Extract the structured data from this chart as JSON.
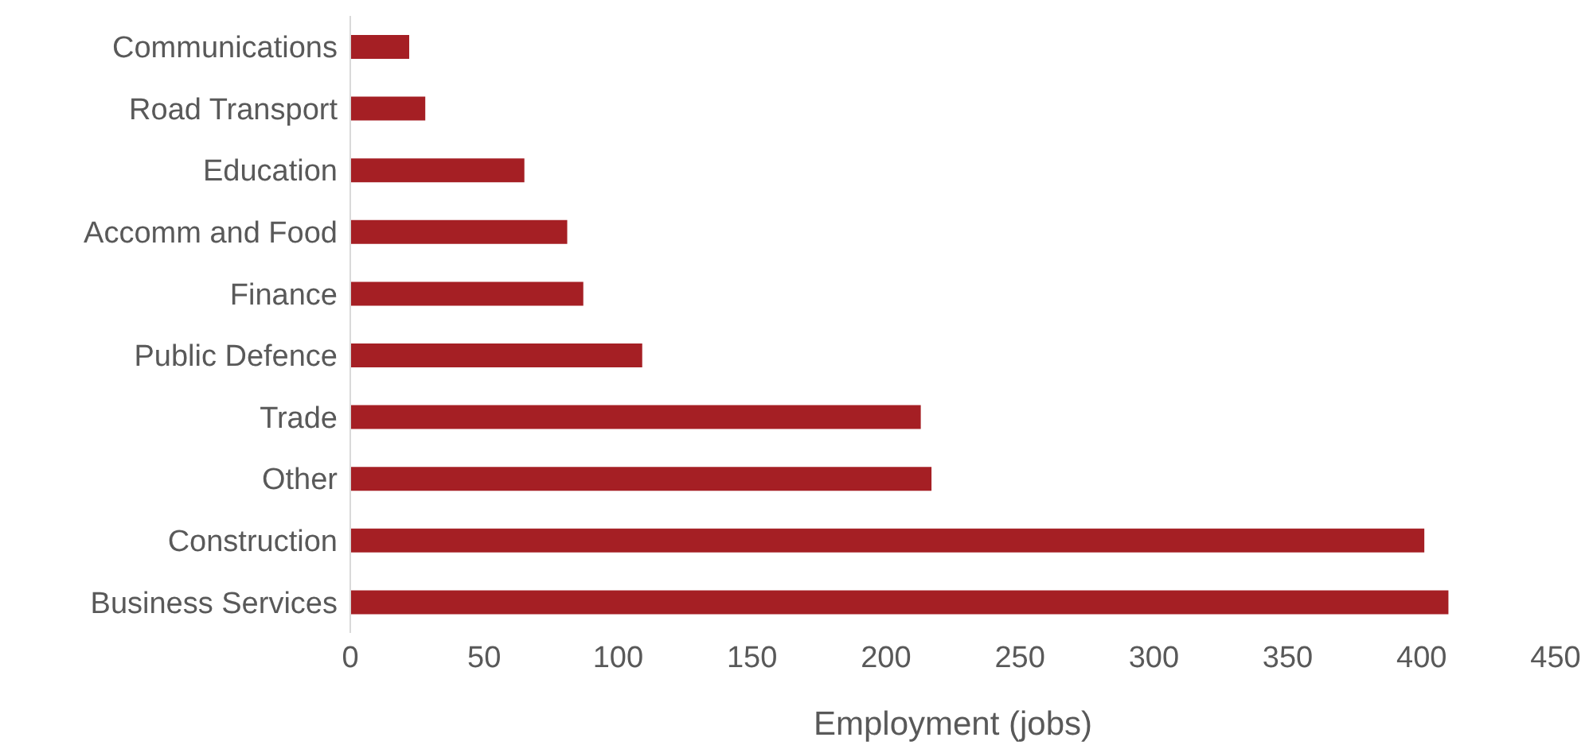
{
  "chart_data": {
    "type": "bar",
    "orientation": "horizontal",
    "xlabel": "Employment (jobs)",
    "categories": [
      "Communications",
      "Road Transport",
      "Education",
      "Accomm and Food",
      "Finance",
      "Public Defence",
      "Trade",
      "Other",
      "Construction",
      "Business Services"
    ],
    "values": [
      22,
      28,
      65,
      81,
      87,
      109,
      213,
      217,
      401,
      410
    ],
    "color": "#a51f24",
    "xlim": [
      0,
      450
    ],
    "xticks": [
      0,
      50,
      100,
      150,
      200,
      250,
      300,
      350,
      400,
      450
    ]
  }
}
